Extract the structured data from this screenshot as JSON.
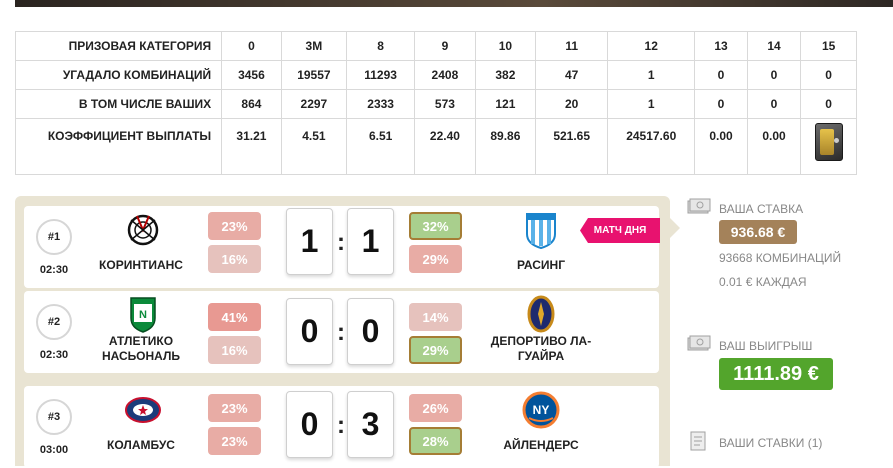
{
  "prize_table": {
    "headers": [
      "ПРИЗОВАЯ КАТЕГОРИЯ",
      "0",
      "3M",
      "8",
      "9",
      "10",
      "11",
      "12",
      "13",
      "14",
      "15"
    ],
    "rows": [
      [
        "УГАДАЛО КОМБИНАЦИЙ",
        "3456",
        "19557",
        "11293",
        "2408",
        "382",
        "47",
        "1",
        "0",
        "0",
        "0"
      ],
      [
        "В ТОМ ЧИСЛЕ ВАШИХ",
        "864",
        "2297",
        "2333",
        "573",
        "121",
        "20",
        "1",
        "0",
        "0",
        "0"
      ],
      [
        "КОЭФФИЦИЕНТ ВЫПЛАТЫ",
        "31.21",
        "4.51",
        "6.51",
        "22.40",
        "89.86",
        "521.65",
        "24517.60",
        "0.00",
        "0.00",
        ""
      ]
    ]
  },
  "matches": [
    {
      "num": "#1",
      "time": "02:30",
      "home": "КОРИНТИАНС",
      "home_pct_top": "23%",
      "home_pct_bottom": "16%",
      "score_home": "1",
      "score_away": "1",
      "away_pct_top": "32%",
      "away_pct_bottom": "29%",
      "away": "РАСИНГ",
      "badge": "МАТЧ ДНЯ"
    },
    {
      "num": "#2",
      "time": "02:30",
      "home": "АТЛЕТИКО НАСЬОНАЛЬ",
      "home_pct_top": "41%",
      "home_pct_bottom": "16%",
      "score_home": "0",
      "score_away": "0",
      "away_pct_top": "14%",
      "away_pct_bottom": "29%",
      "away": "ДЕПОРТИВО ЛА-ГУАЙРА"
    },
    {
      "num": "#3",
      "time": "03:00",
      "home": "КОЛАМБУС",
      "home_pct_top": "23%",
      "home_pct_bottom": "23%",
      "score_home": "0",
      "score_away": "3",
      "away_pct_top": "26%",
      "away_pct_bottom": "28%",
      "away": "АЙЛЕНДЕРС"
    }
  ],
  "sidebar": {
    "stake_label": "ВАША СТАВКА",
    "stake_value": "936.68 €",
    "combinations": "93668 КОМБИНАЦИЙ",
    "each": "0.01 € КАЖДАЯ",
    "win_label": "ВАШ ВЫИГРЫШ",
    "win_value": "1111.89 €",
    "bets_label": "ВАШИ СТАВКИ (1)"
  },
  "icons": {
    "money": "money-stack-icon",
    "bets": "document-icon",
    "safe": "safe-icon"
  },
  "colors": {
    "badge": "#e8126f",
    "stake_pill": "#a4825a",
    "win_pill": "#53a52c",
    "panel": "#e9e4d3"
  }
}
